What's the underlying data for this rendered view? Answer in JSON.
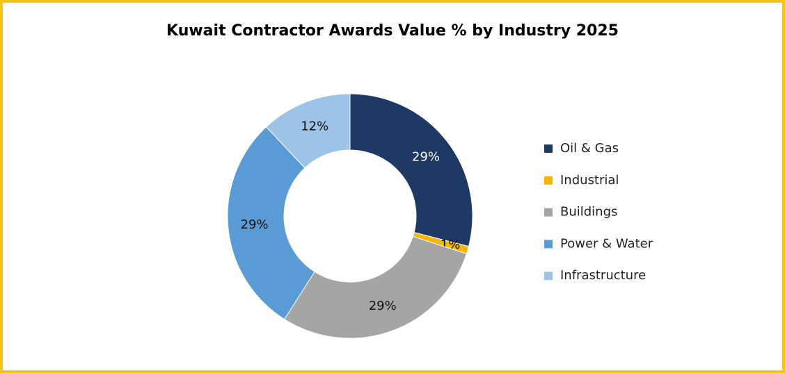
{
  "chart_data": {
    "type": "donut",
    "title": "Kuwait Contractor Awards Value % by Industry 2025",
    "categories": [
      "Oil & Gas",
      "Industrial",
      "Buildings",
      "Power & Water",
      "Infrastructure"
    ],
    "values": [
      29,
      1,
      29,
      29,
      12
    ],
    "value_labels": [
      "29%",
      "1%",
      "29%",
      "29%",
      "12%"
    ],
    "colors": [
      "#1f3864",
      "#f5b800",
      "#a5a5a5",
      "#5b9bd5",
      "#9dc3e6"
    ],
    "legend": "right"
  }
}
